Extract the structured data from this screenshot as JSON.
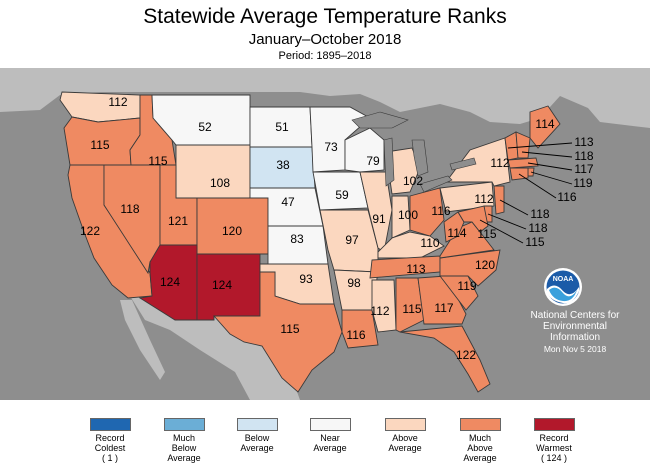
{
  "title": "Statewide Average Temperature Ranks",
  "subtitle": "January–October 2018",
  "period": "Period: 1895–2018",
  "colors": {
    "record_coldest": "#1f67b1",
    "much_below": "#6baed6",
    "below": "#d1e4f2",
    "near": "#f7f7f7",
    "above": "#fbd7bf",
    "much_above": "#ef8a62",
    "record_warmest": "#b2182b",
    "ocean": "#8e8e8e",
    "land_outside": "#bdbdbd",
    "lakes": "#8e8e8e"
  },
  "states": [
    {
      "code": "WA",
      "rank": "112",
      "category": "above"
    },
    {
      "code": "OR",
      "rank": "115",
      "category": "much_above"
    },
    {
      "code": "CA",
      "rank": "122",
      "category": "much_above"
    },
    {
      "code": "NV",
      "rank": "118",
      "category": "much_above"
    },
    {
      "code": "ID",
      "rank": "115",
      "category": "much_above"
    },
    {
      "code": "MT",
      "rank": "52",
      "category": "near"
    },
    {
      "code": "WY",
      "rank": "108",
      "category": "above"
    },
    {
      "code": "UT",
      "rank": "121",
      "category": "much_above"
    },
    {
      "code": "CO",
      "rank": "120",
      "category": "much_above"
    },
    {
      "code": "AZ",
      "rank": "124",
      "category": "record_warmest"
    },
    {
      "code": "NM",
      "rank": "124",
      "category": "record_warmest"
    },
    {
      "code": "ND",
      "rank": "51",
      "category": "near"
    },
    {
      "code": "SD",
      "rank": "38",
      "category": "below"
    },
    {
      "code": "NE",
      "rank": "47",
      "category": "near"
    },
    {
      "code": "KS",
      "rank": "83",
      "category": "near"
    },
    {
      "code": "OK",
      "rank": "93",
      "category": "above"
    },
    {
      "code": "TX",
      "rank": "115",
      "category": "much_above"
    },
    {
      "code": "MN",
      "rank": "73",
      "category": "near"
    },
    {
      "code": "IA",
      "rank": "59",
      "category": "near"
    },
    {
      "code": "MO",
      "rank": "97",
      "category": "above"
    },
    {
      "code": "AR",
      "rank": "98",
      "category": "above"
    },
    {
      "code": "LA",
      "rank": "116",
      "category": "much_above"
    },
    {
      "code": "WI",
      "rank": "79",
      "category": "near"
    },
    {
      "code": "IL",
      "rank": "91",
      "category": "above"
    },
    {
      "code": "MI",
      "rank": "102",
      "category": "above"
    },
    {
      "code": "IN",
      "rank": "100",
      "category": "above"
    },
    {
      "code": "OH",
      "rank": "116",
      "category": "much_above"
    },
    {
      "code": "KY",
      "rank": "110",
      "category": "above"
    },
    {
      "code": "TN",
      "rank": "113",
      "category": "much_above"
    },
    {
      "code": "MS",
      "rank": "112",
      "category": "above"
    },
    {
      "code": "AL",
      "rank": "115",
      "category": "much_above"
    },
    {
      "code": "GA",
      "rank": "117",
      "category": "much_above"
    },
    {
      "code": "FL",
      "rank": "122",
      "category": "much_above"
    },
    {
      "code": "SC",
      "rank": "119",
      "category": "much_above"
    },
    {
      "code": "NC",
      "rank": "120",
      "category": "much_above"
    },
    {
      "code": "VA",
      "rank": "115",
      "category": "much_above"
    },
    {
      "code": "WV",
      "rank": "114",
      "category": "much_above"
    },
    {
      "code": "PA",
      "rank": "112",
      "category": "above"
    },
    {
      "code": "NY",
      "rank": "112",
      "category": "above"
    },
    {
      "code": "ME",
      "rank": "114",
      "category": "much_above"
    },
    {
      "code": "VT",
      "rank": "113",
      "category": "much_above"
    },
    {
      "code": "NH",
      "rank": "118",
      "category": "much_above"
    },
    {
      "code": "MA",
      "rank": "117",
      "category": "much_above"
    },
    {
      "code": "RI",
      "rank": "119",
      "category": "much_above"
    },
    {
      "code": "CT",
      "rank": "116",
      "category": "much_above"
    },
    {
      "code": "NJ",
      "rank": "118",
      "category": "much_above"
    },
    {
      "code": "DE",
      "rank": "118",
      "category": "much_above"
    },
    {
      "code": "MD",
      "rank": "115",
      "category": "much_above"
    }
  ],
  "credit": {
    "logo_text": "NOAA",
    "line1": "National Centers for",
    "line2": "Environmental",
    "line3": "Information",
    "date": "Mon Nov  5 2018"
  },
  "legend": [
    {
      "key": "record_coldest",
      "lines": [
        "Record",
        "Coldest",
        "( 1 )"
      ]
    },
    {
      "key": "much_below",
      "lines": [
        "Much",
        "Below",
        "Average"
      ]
    },
    {
      "key": "below",
      "lines": [
        "Below",
        "Average"
      ]
    },
    {
      "key": "near",
      "lines": [
        "Near",
        "Average"
      ]
    },
    {
      "key": "above",
      "lines": [
        "Above",
        "Average"
      ]
    },
    {
      "key": "much_above",
      "lines": [
        "Much",
        "Above",
        "Average"
      ]
    },
    {
      "key": "record_warmest",
      "lines": [
        "Record",
        "Warmest",
        "( 124 )"
      ]
    }
  ]
}
